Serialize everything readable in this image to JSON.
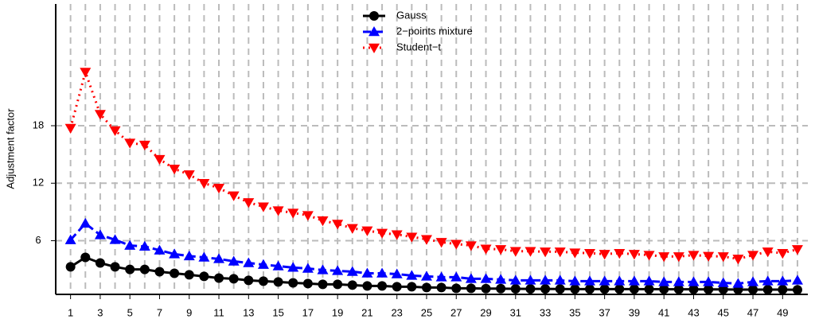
{
  "chart_data": {
    "type": "line",
    "y_label": "Adjustment factor",
    "x": [
      1,
      2,
      3,
      4,
      5,
      6,
      7,
      8,
      9,
      10,
      11,
      12,
      13,
      14,
      15,
      16,
      17,
      18,
      19,
      20,
      21,
      22,
      23,
      24,
      25,
      26,
      27,
      28,
      29,
      30,
      31,
      32,
      33,
      34,
      35,
      36,
      37,
      38,
      39,
      40,
      41,
      42,
      43,
      44,
      45,
      46,
      47,
      48,
      49,
      50
    ],
    "series": [
      {
        "name": "Gauss",
        "color": "#000000",
        "marker": "circle",
        "line_style": "solid",
        "values": [
          3.27,
          4.26,
          3.68,
          3.27,
          3.0,
          3.0,
          2.77,
          2.6,
          2.44,
          2.28,
          2.1,
          2.03,
          1.86,
          1.78,
          1.7,
          1.6,
          1.53,
          1.45,
          1.45,
          1.37,
          1.28,
          1.28,
          1.2,
          1.2,
          1.12,
          1.12,
          1.03,
          1.03,
          1.0,
          1.0,
          0.98,
          0.97,
          0.97,
          0.96,
          0.95,
          0.95,
          0.95,
          0.95,
          0.95,
          0.94,
          0.94,
          0.93,
          0.93,
          0.92,
          0.92,
          0.9,
          0.9,
          0.9,
          0.9,
          0.88
        ]
      },
      {
        "name": "2−points mixture",
        "color": "#0000ff",
        "marker": "triangle-up",
        "line_style": "dashed",
        "values": [
          6.08,
          7.8,
          6.6,
          6.1,
          5.5,
          5.4,
          5.0,
          4.6,
          4.4,
          4.26,
          4.1,
          3.85,
          3.68,
          3.5,
          3.35,
          3.2,
          3.1,
          2.94,
          2.86,
          2.77,
          2.6,
          2.6,
          2.52,
          2.36,
          2.28,
          2.2,
          2.2,
          2.03,
          2.03,
          1.95,
          1.86,
          1.86,
          1.86,
          1.86,
          1.78,
          1.78,
          1.78,
          1.78,
          1.78,
          1.78,
          1.7,
          1.7,
          1.7,
          1.7,
          1.6,
          1.53,
          1.7,
          1.78,
          1.78,
          1.86
        ]
      },
      {
        "name": "Student−t",
        "color": "#ff0000",
        "marker": "triangle-down",
        "line_style": "dotted",
        "values": [
          17.75,
          23.6,
          19.2,
          17.5,
          16.2,
          16.0,
          14.5,
          13.5,
          12.9,
          12.0,
          11.5,
          10.7,
          10.0,
          9.55,
          9.15,
          8.9,
          8.65,
          8.1,
          7.75,
          7.3,
          7.05,
          6.8,
          6.65,
          6.4,
          6.15,
          5.85,
          5.65,
          5.5,
          5.15,
          5.1,
          4.9,
          4.9,
          4.85,
          4.85,
          4.75,
          4.7,
          4.6,
          4.7,
          4.6,
          4.5,
          4.35,
          4.35,
          4.5,
          4.4,
          4.35,
          4.1,
          4.5,
          4.85,
          4.7,
          5.1
        ]
      }
    ],
    "xlim": [
      0,
      50.7
    ],
    "ylim": [
      0.4,
      30.7
    ],
    "xticks": [
      1,
      3,
      5,
      7,
      9,
      11,
      13,
      15,
      17,
      19,
      21,
      23,
      25,
      27,
      29,
      31,
      33,
      35,
      37,
      39,
      41,
      43,
      45,
      47,
      49
    ],
    "yticks": [
      6,
      12,
      18
    ],
    "grid": true,
    "legend_position": "top"
  }
}
